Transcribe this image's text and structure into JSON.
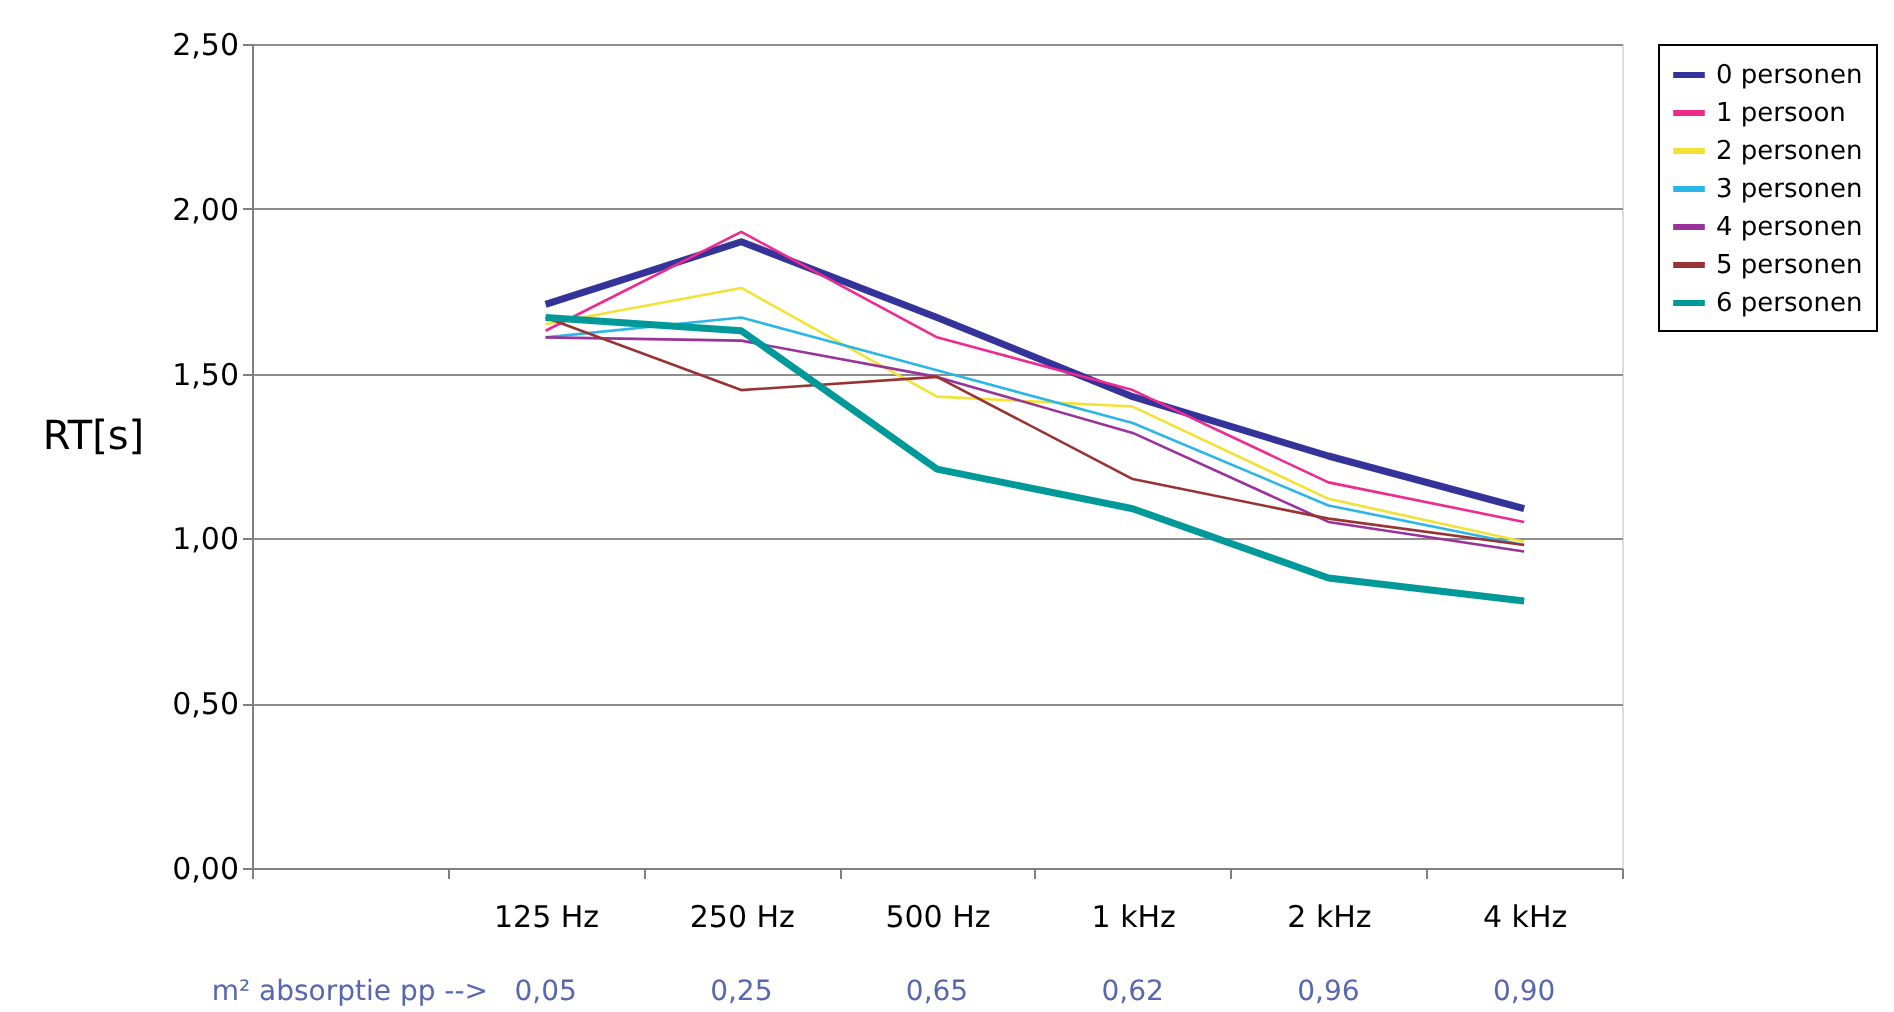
{
  "chart_data": {
    "type": "line",
    "ylabel": "RT[s]",
    "categories": [
      null,
      "125 Hz",
      "250 Hz",
      "500 Hz",
      "1 kHz",
      "2 kHz",
      "4 kHz"
    ],
    "series": [
      {
        "name": "0 personen",
        "color": "#333399",
        "values": [
          null,
          1.71,
          1.9,
          1.67,
          1.43,
          1.25,
          1.09
        ]
      },
      {
        "name": "1 persoon",
        "color": "#ee2a8f",
        "values": [
          null,
          1.63,
          1.93,
          1.61,
          1.45,
          1.17,
          1.05
        ]
      },
      {
        "name": "2 personen",
        "color": "#f2e236",
        "values": [
          null,
          1.65,
          1.76,
          1.43,
          1.4,
          1.12,
          0.99
        ]
      },
      {
        "name": "3 personen",
        "color": "#2cb6e8",
        "values": [
          null,
          1.61,
          1.67,
          1.51,
          1.35,
          1.1,
          0.98
        ]
      },
      {
        "name": "4 personen",
        "color": "#993399",
        "values": [
          null,
          1.61,
          1.6,
          1.49,
          1.32,
          1.05,
          0.96
        ]
      },
      {
        "name": "5 personen",
        "color": "#993333",
        "values": [
          null,
          1.67,
          1.45,
          1.49,
          1.18,
          1.06,
          0.98
        ]
      },
      {
        "name": "6 personen",
        "color": "#009999",
        "values": [
          null,
          1.67,
          1.63,
          1.21,
          1.09,
          0.88,
          0.81
        ]
      }
    ],
    "ylim": [
      0,
      2.5
    ],
    "yticks": [
      {
        "value": 0,
        "label": "0,00"
      },
      {
        "value": 0.5,
        "label": "0,50"
      },
      {
        "value": 1,
        "label": "1,00"
      },
      {
        "value": 1.5,
        "label": "1,50"
      },
      {
        "value": 2,
        "label": "2,00"
      },
      {
        "value": 2.5,
        "label": "2,50"
      }
    ],
    "grid": "y",
    "legend": "right",
    "marker": "none",
    "line_style": "solid",
    "annotations": [
      "m² absorptie pp  -->",
      "0,05",
      "0,25",
      "0,65",
      "0,62",
      "0,96",
      "0,90"
    ]
  }
}
